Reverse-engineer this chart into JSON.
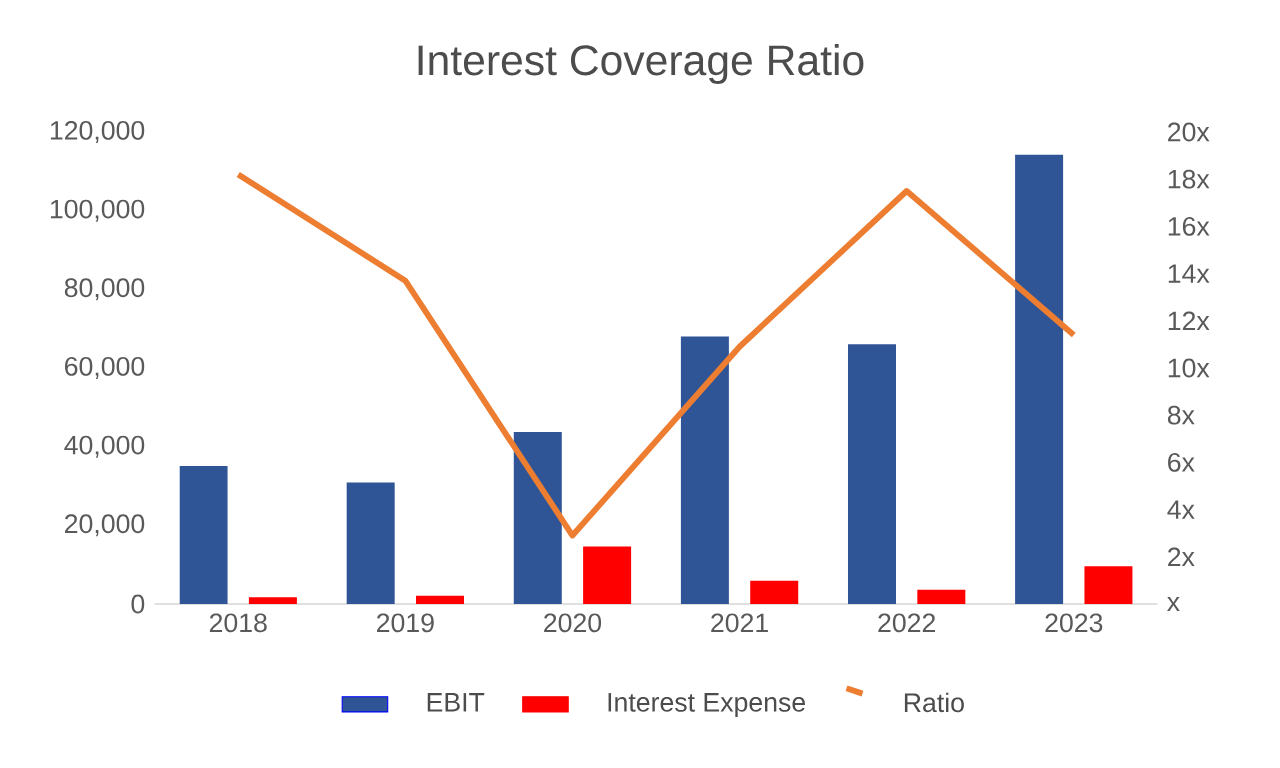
{
  "chart_data": {
    "type": "bar",
    "title": "Interest Coverage Ratio",
    "categories": [
      "2018",
      "2019",
      "2020",
      "2021",
      "2022",
      "2023"
    ],
    "series": [
      {
        "name": "EBIT",
        "color": "#2f5597",
        "values": [
          35100,
          30900,
          43700,
          68000,
          66000,
          114200
        ]
      },
      {
        "name": "Interest Expense",
        "color": "#ff0000",
        "values": [
          1700,
          2100,
          14600,
          5900,
          3600,
          9600
        ]
      },
      {
        "name": "Ratio",
        "type": "line",
        "axis": "y2",
        "color": "#ed7d31",
        "values": [
          18.2,
          13.7,
          2.9,
          10.9,
          17.5,
          11.4
        ]
      }
    ],
    "ylim": [
      0,
      120000
    ],
    "yticks": [
      {
        "value": 0,
        "label": "0"
      },
      {
        "value": 20000,
        "label": "20,000"
      },
      {
        "value": 40000,
        "label": "40,000"
      },
      {
        "value": 60000,
        "label": "60,000"
      },
      {
        "value": 80000,
        "label": "80,000"
      },
      {
        "value": 100000,
        "label": "100,000"
      },
      {
        "value": 120000,
        "label": "120,000"
      }
    ],
    "y2lim": [
      0,
      20
    ],
    "y2ticks": [
      {
        "value": 0,
        "label": "x"
      },
      {
        "value": 2,
        "label": "2x"
      },
      {
        "value": 4,
        "label": "4x"
      },
      {
        "value": 6,
        "label": "6x"
      },
      {
        "value": 8,
        "label": "8x"
      },
      {
        "value": 10,
        "label": "10x"
      },
      {
        "value": 12,
        "label": "12x"
      },
      {
        "value": 14,
        "label": "14x"
      },
      {
        "value": 16,
        "label": "16x"
      },
      {
        "value": 18,
        "label": "18x"
      },
      {
        "value": 20,
        "label": "20x"
      }
    ],
    "grid": false,
    "legend": "bottom"
  }
}
